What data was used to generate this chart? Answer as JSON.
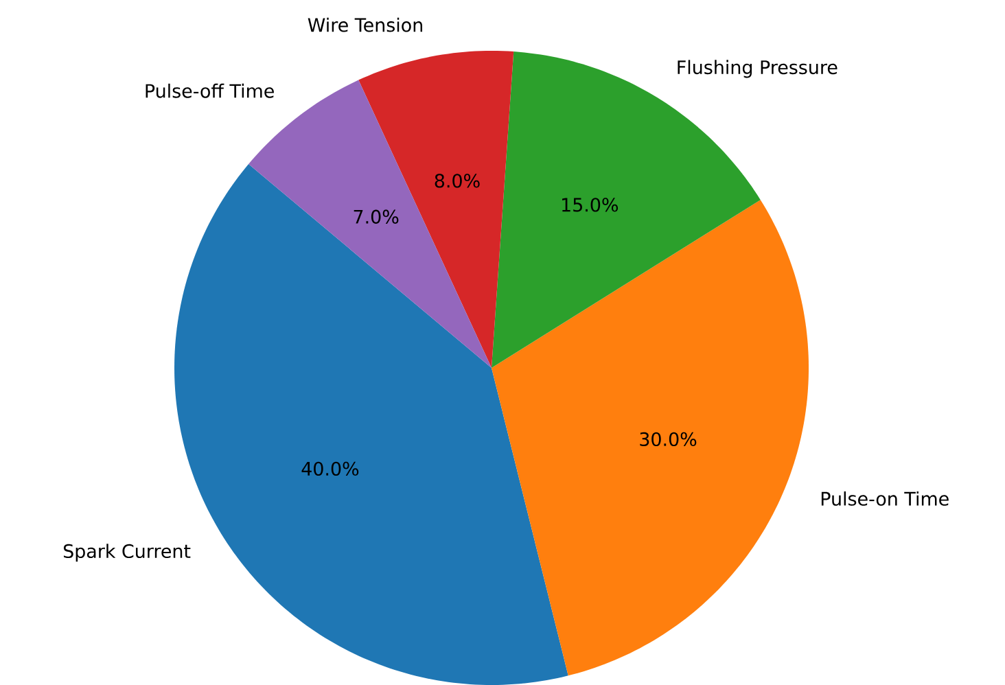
{
  "chart_data": {
    "type": "pie",
    "categories": [
      "Spark Current",
      "Pulse-on Time",
      "Flushing Pressure",
      "Wire Tension",
      "Pulse-off Time"
    ],
    "values": [
      40,
      30,
      15,
      8,
      7
    ],
    "value_labels": [
      "40.0%",
      "30.0%",
      "15.0%",
      "8.0%",
      "7.0%"
    ],
    "colors": [
      "#1f77b4",
      "#ff7f0e",
      "#2ca02c",
      "#d62728",
      "#9467bd"
    ]
  }
}
